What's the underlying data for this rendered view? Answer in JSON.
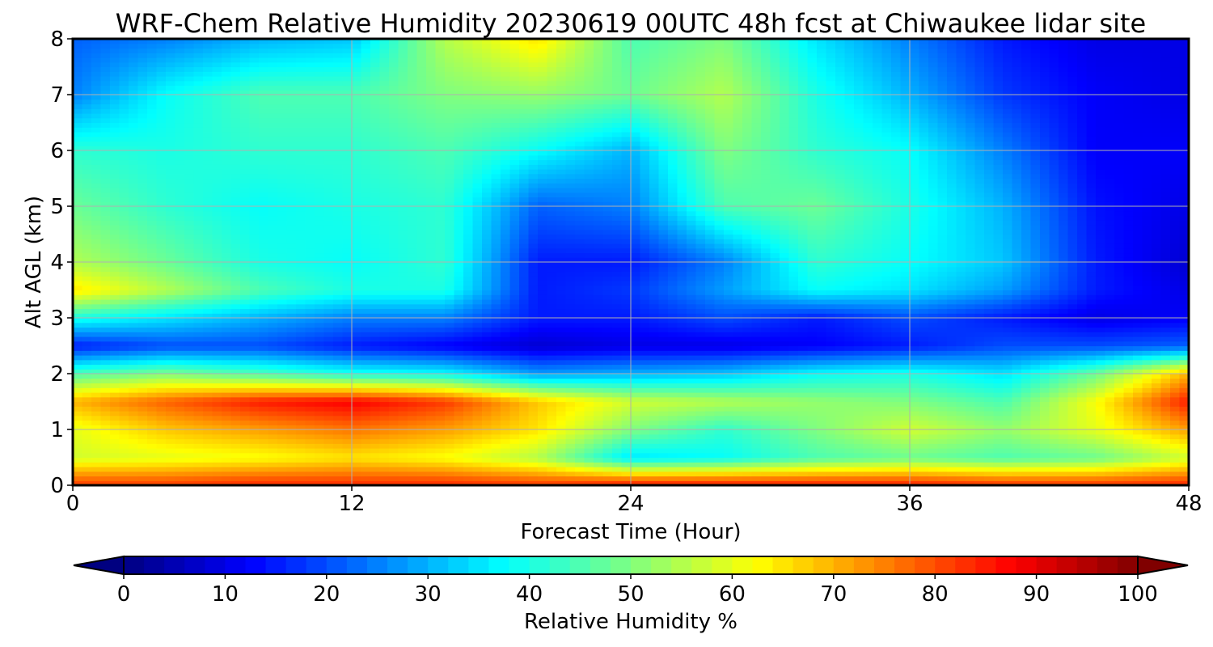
{
  "chart_data": {
    "type": "heatmap",
    "title": "WRF-Chem Relative Humidity 20230619 00UTC 48h fcst at Chiwaukee lidar site",
    "xlabel": "Forecast Time (Hour)",
    "ylabel": "Alt AGL (km)",
    "xlim": [
      0,
      48
    ],
    "ylim": [
      0,
      8
    ],
    "x_ticks": [
      0,
      12,
      24,
      36,
      48
    ],
    "y_ticks": [
      0,
      1,
      2,
      3,
      4,
      5,
      6,
      7,
      8
    ],
    "grid": true,
    "colormap": "jet",
    "colorbar": {
      "label": "Relative Humidity %",
      "range": [
        0,
        100
      ],
      "ticks": [
        0,
        10,
        20,
        30,
        40,
        50,
        60,
        70,
        80,
        90,
        100
      ],
      "extend": "both"
    },
    "x_hours": [
      0,
      4,
      8,
      12,
      16,
      20,
      24,
      28,
      32,
      36,
      40,
      44,
      48
    ],
    "y_km": [
      0.05,
      0.5,
      1.0,
      1.5,
      2.0,
      2.5,
      3.0,
      3.5,
      4.0,
      5.0,
      6.0,
      7.0,
      8.0
    ],
    "rh_percent": [
      [
        80,
        80,
        82,
        82,
        82,
        80,
        82,
        82,
        82,
        82,
        80,
        80,
        82
      ],
      [
        58,
        60,
        62,
        65,
        62,
        55,
        35,
        38,
        45,
        48,
        45,
        48,
        58
      ],
      [
        60,
        68,
        72,
        76,
        72,
        65,
        50,
        42,
        50,
        58,
        52,
        60,
        72
      ],
      [
        70,
        78,
        85,
        88,
        82,
        68,
        58,
        55,
        52,
        50,
        45,
        62,
        85
      ],
      [
        45,
        50,
        45,
        40,
        38,
        28,
        30,
        32,
        38,
        40,
        35,
        48,
        70
      ],
      [
        15,
        20,
        20,
        15,
        12,
        8,
        10,
        10,
        12,
        15,
        20,
        20,
        22
      ],
      [
        40,
        35,
        30,
        25,
        25,
        15,
        15,
        20,
        15,
        20,
        15,
        10,
        12
      ],
      [
        65,
        55,
        45,
        40,
        40,
        15,
        18,
        28,
        38,
        35,
        28,
        15,
        10
      ],
      [
        55,
        48,
        40,
        38,
        42,
        15,
        15,
        25,
        42,
        38,
        32,
        15,
        8
      ],
      [
        48,
        42,
        38,
        40,
        42,
        22,
        25,
        45,
        48,
        40,
        30,
        14,
        10
      ],
      [
        42,
        40,
        42,
        42,
        45,
        38,
        30,
        50,
        42,
        38,
        25,
        12,
        12
      ],
      [
        25,
        38,
        45,
        45,
        50,
        52,
        48,
        55,
        40,
        30,
        18,
        12,
        10
      ],
      [
        22,
        25,
        30,
        32,
        55,
        65,
        45,
        50,
        35,
        25,
        15,
        10,
        10
      ]
    ]
  }
}
